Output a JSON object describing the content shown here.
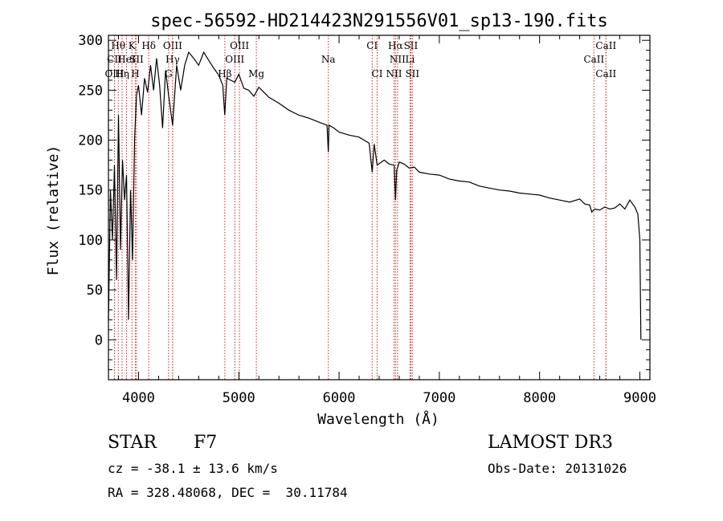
{
  "chart_data": {
    "type": "line",
    "title": "spec-56592-HD214423N291556V01_sp13-190.fits",
    "xlabel": "Wavelength (Å)",
    "ylabel": "Flux (relative)",
    "xlim": [
      3700,
      9100
    ],
    "ylim": [
      -40,
      305
    ],
    "xticks": [
      4000,
      5000,
      6000,
      7000,
      8000,
      9000
    ],
    "yticks": [
      0,
      50,
      100,
      150,
      200,
      250,
      300
    ],
    "grid": false,
    "series": [
      {
        "name": "flux",
        "x": [
          3700,
          3720,
          3740,
          3760,
          3780,
          3800,
          3820,
          3840,
          3860,
          3880,
          3900,
          3920,
          3940,
          3960,
          3980,
          4000,
          4030,
          4060,
          4090,
          4120,
          4150,
          4180,
          4210,
          4240,
          4270,
          4300,
          4340,
          4380,
          4420,
          4460,
          4500,
          4550,
          4600,
          4650,
          4700,
          4750,
          4800,
          4840,
          4860,
          4880,
          4920,
          4960,
          5000,
          5050,
          5100,
          5150,
          5200,
          5300,
          5400,
          5500,
          5600,
          5700,
          5800,
          5880,
          5893,
          5900,
          5950,
          6000,
          6100,
          6200,
          6300,
          6330,
          6350,
          6380,
          6450,
          6500,
          6550,
          6563,
          6575,
          6600,
          6650,
          6700,
          6750,
          6800,
          6900,
          7000,
          7100,
          7200,
          7300,
          7400,
          7500,
          7600,
          7700,
          7800,
          7900,
          8000,
          8100,
          8200,
          8300,
          8400,
          8450,
          8500,
          8520,
          8550,
          8600,
          8650,
          8700,
          8750,
          8800,
          8850,
          8900,
          8950,
          8980,
          9000,
          9010
        ],
        "y": [
          20,
          150,
          100,
          175,
          60,
          225,
          90,
          180,
          140,
          165,
          20,
          150,
          80,
          200,
          245,
          255,
          225,
          262,
          248,
          275,
          250,
          282,
          255,
          212,
          270,
          245,
          215,
          275,
          250,
          275,
          288,
          282,
          275,
          288,
          280,
          272,
          265,
          255,
          225,
          262,
          260,
          258,
          266,
          252,
          250,
          244,
          253,
          243,
          237,
          230,
          225,
          222,
          218,
          215,
          188,
          215,
          212,
          208,
          205,
          203,
          197,
          168,
          196,
          175,
          180,
          176,
          175,
          140,
          170,
          178,
          176,
          172,
          173,
          168,
          166,
          165,
          161,
          159,
          158,
          154,
          152,
          150,
          149,
          147,
          146,
          145,
          142,
          140,
          138,
          141,
          136,
          135,
          128,
          131,
          130,
          133,
          131,
          132,
          136,
          131,
          140,
          133,
          126,
          100,
          0
        ]
      }
    ],
    "lines": [
      {
        "label": "Hθ",
        "x": 3798,
        "row": 0
      },
      {
        "label": "CII",
        "x": 3760,
        "row": 1
      },
      {
        "label": "OIII",
        "x": 3760,
        "row": 2
      },
      {
        "label": "K",
        "x": 3934,
        "row": 0
      },
      {
        "label": "HeI",
        "x": 3880,
        "row": 1
      },
      {
        "label": "Hη",
        "x": 3836,
        "row": 2
      },
      {
        "label": "Hδ",
        "x": 4102,
        "row": 0
      },
      {
        "label": "SII",
        "x": 3980,
        "row": 1
      },
      {
        "label": "H",
        "x": 3968,
        "row": 2
      },
      {
        "label": "OIII",
        "x": 4340,
        "row": 0
      },
      {
        "label": "Hγ",
        "x": 4340,
        "row": 1
      },
      {
        "label": "G",
        "x": 4300,
        "row": 2
      },
      {
        "label": "OIII",
        "x": 5007,
        "row": 0
      },
      {
        "label": "OIII",
        "x": 4960,
        "row": 1
      },
      {
        "label": "Hβ",
        "x": 4861,
        "row": 2
      },
      {
        "label": "Mg",
        "x": 5175,
        "row": 2
      },
      {
        "label": "Na",
        "x": 5893,
        "row": 1
      },
      {
        "label": "CI",
        "x": 6330,
        "row": 0
      },
      {
        "label": "CI",
        "x": 6380,
        "row": 2
      },
      {
        "label": "Hα",
        "x": 6563,
        "row": 0
      },
      {
        "label": "SII",
        "x": 6716,
        "row": 0
      },
      {
        "label": "NII",
        "x": 6583,
        "row": 1
      },
      {
        "label": "Li",
        "x": 6708,
        "row": 1
      },
      {
        "label": "NII",
        "x": 6548,
        "row": 2
      },
      {
        "label": "SII",
        "x": 6731,
        "row": 2
      },
      {
        "label": "CaII",
        "x": 8662,
        "row": 0
      },
      {
        "label": "CaII",
        "x": 8542,
        "row": 1
      },
      {
        "label": "CaII",
        "x": 8662,
        "row": 2
      }
    ]
  },
  "info": {
    "object_type": "STAR",
    "spectral_class": "F7",
    "survey": "LAMOST DR3",
    "redshift": "cz = -38.1 ± 13.6 km/s",
    "obs_date": "Obs-Date: 20131026",
    "coords": "RA = 328.48068, DEC =  30.11784"
  }
}
